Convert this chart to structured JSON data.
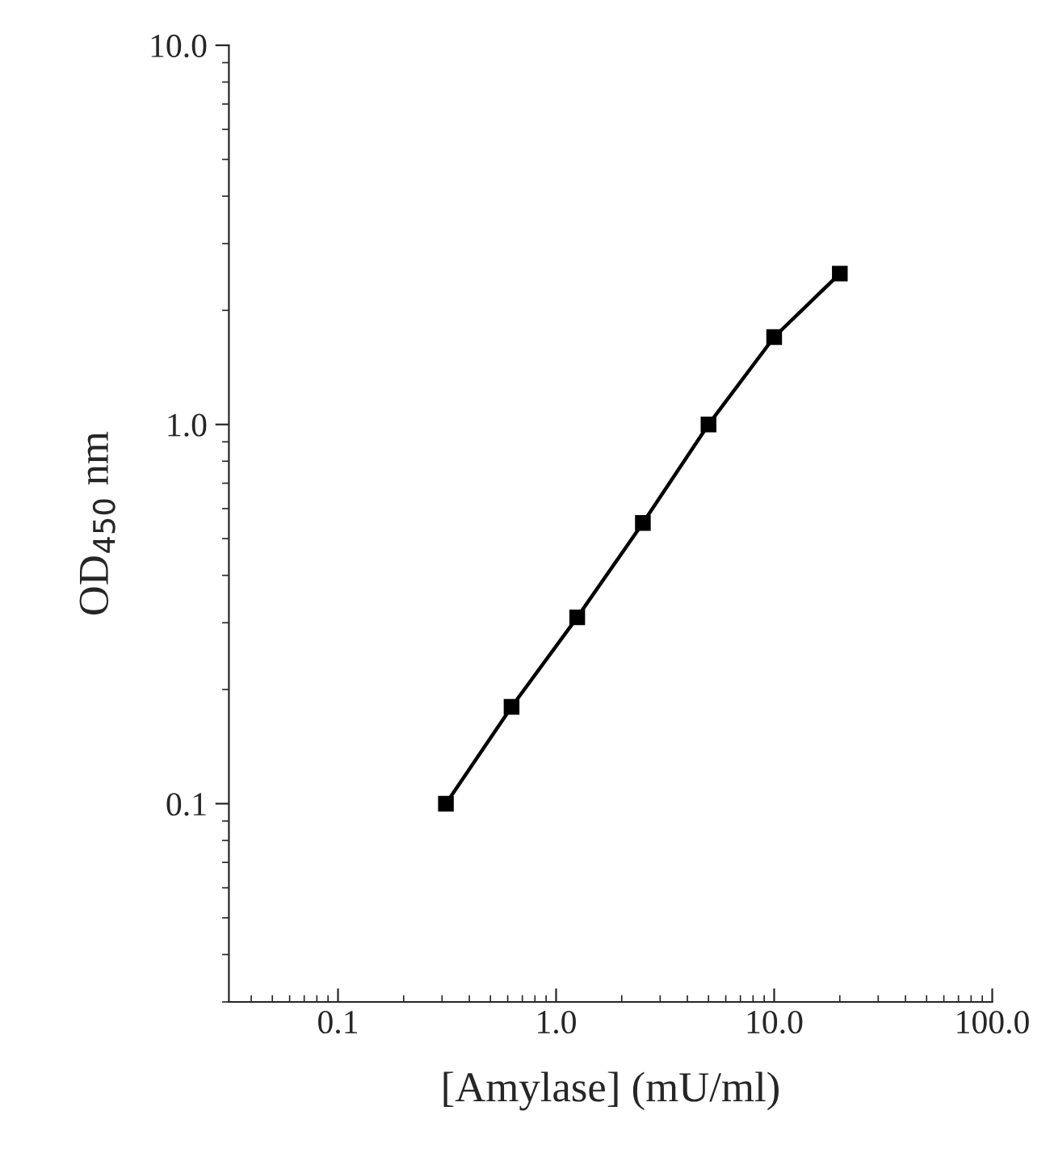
{
  "chart_data": {
    "type": "line",
    "xlabel": "[Amylase] (mU/ml)",
    "ylabel": "OD$_{450}$ nm",
    "log": "xy",
    "marker": "square",
    "line_style": "solid",
    "grid": false,
    "legend": false,
    "xlim": [
      0.0316,
      100
    ],
    "ylim": [
      0.03,
      10
    ],
    "xticks": [
      0.1,
      {
        "value": 1,
        "label": "1.0"
      },
      {
        "value": 10,
        "label": "10.0"
      },
      {
        "value": 100,
        "label": "100.0"
      }
    ],
    "yticks": [
      0.1,
      {
        "value": 1,
        "label": "1.0"
      },
      {
        "value": 10,
        "label": "10.0"
      }
    ],
    "series": [
      {
        "color": "#000000",
        "x": [
          0.3125,
          0.625,
          1.25,
          2.5,
          5,
          10,
          20
        ],
        "values": [
          0.1,
          0.18,
          0.31,
          0.55,
          1.0,
          1.7,
          2.5
        ]
      }
    ]
  }
}
